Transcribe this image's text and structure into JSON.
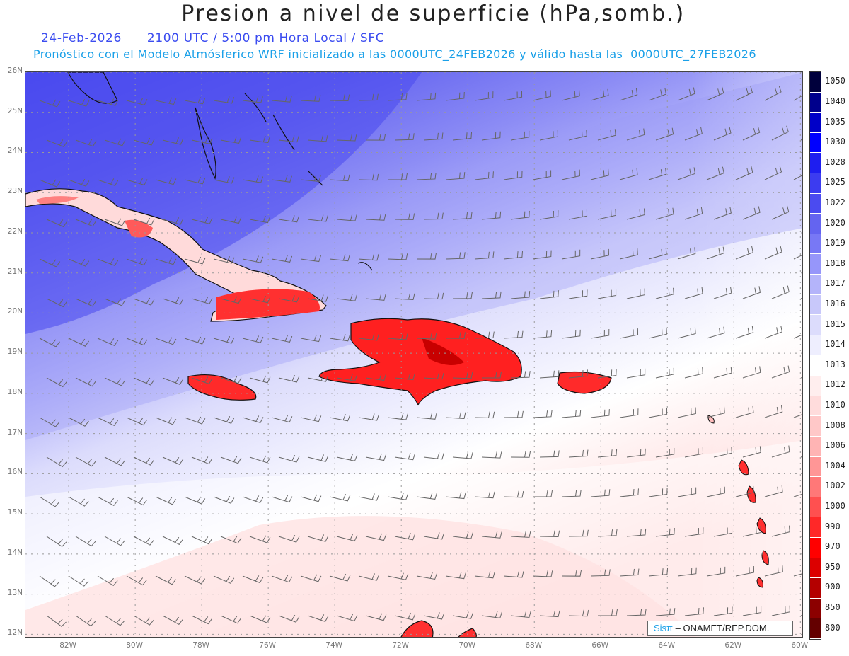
{
  "header": {
    "title": "Presion a nivel de superficie (hPa,somb.)",
    "date": "24-Feb-2026",
    "time_info": "2100 UTC / 5:00 pm Hora Local / SFC",
    "model_info": "Pronóstico con el Modelo Atmósferico WRF inicializado a las 0000UTC_24FEB2026 y válido hasta las  0000UTC_27FEB2026"
  },
  "map": {
    "lat_labels": [
      "26N",
      "25N",
      "24N",
      "23N",
      "22N",
      "21N",
      "20N",
      "19N",
      "18N",
      "17N",
      "16N",
      "15N",
      "14N",
      "13N",
      "12N"
    ],
    "lon_labels": [
      "82W",
      "80W",
      "78W",
      "76W",
      "74W",
      "72W",
      "70W",
      "68W",
      "66W",
      "64W",
      "62W",
      "60W"
    ]
  },
  "colorbar": {
    "levels": [
      "1050",
      "1040",
      "1035",
      "1030",
      "1028",
      "1025",
      "1022",
      "1020",
      "1019",
      "1018",
      "1017",
      "1016",
      "1015",
      "1014",
      "1013",
      "1012",
      "1010",
      "1008",
      "1006",
      "1004",
      "1002",
      "1000",
      "990",
      "970",
      "950",
      "900",
      "850",
      "800"
    ],
    "colors": [
      "#00003c",
      "#00008c",
      "#0000c8",
      "#0000ff",
      "#1e1ef0",
      "#3c3cf0",
      "#4b4bf0",
      "#6464f0",
      "#7878f5",
      "#9696fa",
      "#b4b4fa",
      "#c8c8fa",
      "#dcdcfc",
      "#eeeefe",
      "#ffffff",
      "#ffeeee",
      "#ffdcdc",
      "#ffc8c8",
      "#ffb4b4",
      "#ff9696",
      "#ff7878",
      "#ff5050",
      "#ff2828",
      "#ff0000",
      "#dc0000",
      "#b40000",
      "#8c0000",
      "#640000"
    ]
  },
  "credit": {
    "logo": "Sisπ",
    "text": "– ONAMET/REP.DOM."
  }
}
